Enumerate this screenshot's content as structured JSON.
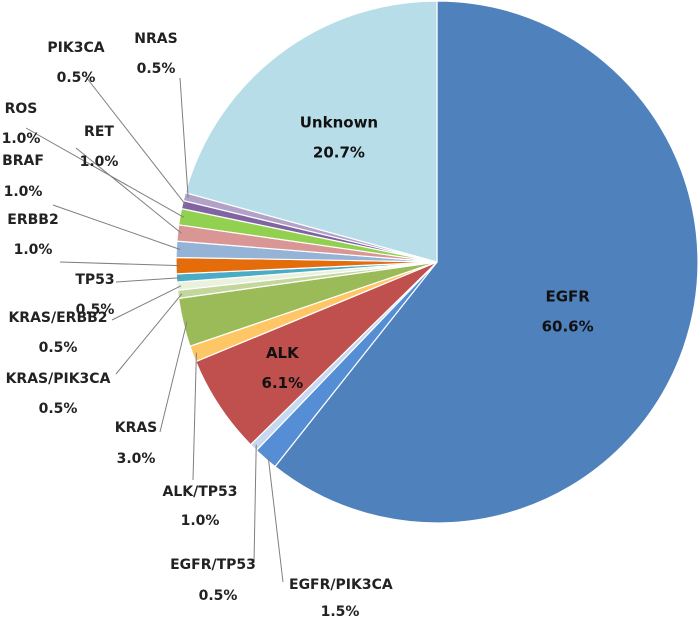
{
  "chart_data": {
    "type": "pie",
    "title": "",
    "start_angle_deg": 0,
    "direction": "clockwise",
    "slices": [
      {
        "label": "EGFR",
        "value": 60.6,
        "display": "60.6%",
        "color": "#4f81bd"
      },
      {
        "label": "EGFR/PIK3CA",
        "value": 1.5,
        "display": "1.5%",
        "color": "#558ed5"
      },
      {
        "label": "EGFR/TP53",
        "value": 0.5,
        "display": "0.5%",
        "color": "#c6d9f1"
      },
      {
        "label": "ALK",
        "value": 6.1,
        "display": "6.1%",
        "color": "#c0504d"
      },
      {
        "label": "ALK/TP53",
        "value": 1.0,
        "display": "1.0%",
        "color": "#ffc666"
      },
      {
        "label": "KRAS",
        "value": 3.0,
        "display": "3.0%",
        "color": "#9bbb59"
      },
      {
        "label": "KRAS/PIK3CA",
        "value": 0.5,
        "display": "0.5%",
        "color": "#c3d69b"
      },
      {
        "label": "KRAS/ERBB2",
        "value": 0.5,
        "display": "0.5%",
        "color": "#eaf1dd"
      },
      {
        "label": "TP53",
        "value": 0.5,
        "display": "0.5%",
        "color": "#4bacc6"
      },
      {
        "label": "ERBB2",
        "value": 1.0,
        "display": "1.0%",
        "color": "#e46c0a"
      },
      {
        "label": "BRAF",
        "value": 1.0,
        "display": "1.0%",
        "color": "#95b3d7"
      },
      {
        "label": "RET",
        "value": 1.0,
        "display": "1.0%",
        "color": "#d99694"
      },
      {
        "label": "ROS",
        "value": 1.0,
        "display": "1.0%",
        "color": "#92d050"
      },
      {
        "label": "PIK3CA",
        "value": 0.5,
        "display": "0.5%",
        "color": "#8064a2"
      },
      {
        "label": "NRAS",
        "value": 0.5,
        "display": "0.5%",
        "color": "#b3a2c7"
      },
      {
        "label": "Unknown",
        "value": 20.7,
        "display": "20.7%",
        "color": "#b7dde8"
      }
    ]
  }
}
